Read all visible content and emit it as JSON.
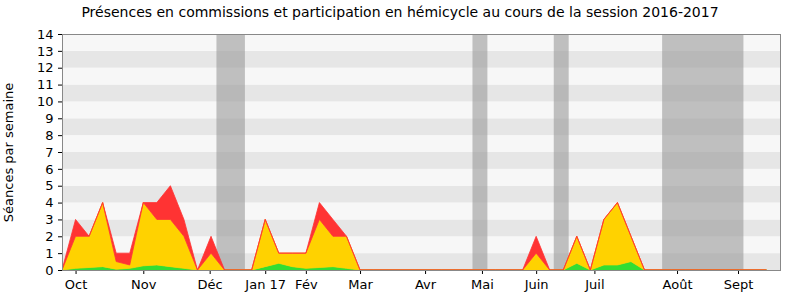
{
  "chart_data": {
    "type": "area",
    "title": "Présences en commissions et participation en hémicycle au cours de la session 2016-2017",
    "y_label": "Séances par semaine",
    "stacked": true,
    "grid": true,
    "x": [
      0,
      1,
      2,
      3,
      4,
      5,
      6,
      7,
      8,
      9,
      10,
      11,
      12,
      13,
      14,
      15,
      16,
      17,
      18,
      19,
      20,
      21,
      22,
      23,
      24,
      25,
      26,
      27,
      28,
      29,
      30,
      31,
      32,
      33,
      34,
      35,
      36,
      37,
      38,
      39,
      40,
      41,
      42,
      43,
      44,
      45,
      46,
      47,
      48,
      49,
      50,
      51,
      52
    ],
    "xlim": [
      0,
      53
    ],
    "xticks": [
      {
        "value": 1,
        "label": "Oct"
      },
      {
        "value": 6,
        "label": "Nov"
      },
      {
        "value": 10.9,
        "label": "Déc"
      },
      {
        "value": 15,
        "label": "Jan 17"
      },
      {
        "value": 18,
        "label": "Fév"
      },
      {
        "value": 22,
        "label": "Mar"
      },
      {
        "value": 26.8,
        "label": "Avr"
      },
      {
        "value": 31,
        "label": "Mai"
      },
      {
        "value": 35,
        "label": "Juin"
      },
      {
        "value": 39.3,
        "label": "Juil"
      },
      {
        "value": 45.4,
        "label": "Août"
      },
      {
        "value": 49.9,
        "label": "Sept"
      }
    ],
    "ylim": [
      0,
      14
    ],
    "yticks": [
      0,
      1,
      2,
      3,
      4,
      5,
      6,
      7,
      8,
      9,
      10,
      11,
      12,
      13,
      14
    ],
    "vacances": [
      [
        11.4,
        13.5
      ],
      [
        30.3,
        31.4
      ],
      [
        36.3,
        37.4
      ],
      [
        44.3,
        50.3
      ]
    ],
    "series": [
      {
        "color": "#33dd33",
        "values": [
          0,
          0.1,
          0.15,
          0.2,
          0.05,
          0.1,
          0.25,
          0.3,
          0.2,
          0.1,
          0,
          0,
          0,
          0,
          0,
          0.2,
          0.4,
          0.2,
          0.1,
          0.15,
          0.2,
          0.1,
          0,
          0,
          0,
          0,
          0,
          0,
          0,
          0,
          0,
          0,
          0,
          0,
          0,
          0,
          0,
          0,
          0.4,
          0,
          0.3,
          0.3,
          0.5,
          0,
          0,
          0,
          0,
          0,
          0,
          0,
          0,
          0,
          0
        ]
      },
      {
        "color": "#ffd200",
        "values": [
          0,
          1.9,
          1.85,
          3.8,
          0.45,
          0.2,
          3.75,
          2.7,
          2.8,
          1.9,
          0,
          1,
          0,
          0,
          0,
          2.8,
          0.6,
          0.8,
          0.9,
          2.85,
          1.8,
          1.9,
          0,
          0,
          0,
          0,
          0,
          0,
          0,
          0,
          0,
          0,
          0,
          0,
          0,
          1,
          0,
          0,
          1.6,
          0,
          2.7,
          3.7,
          1.5,
          0,
          0,
          0,
          0,
          0,
          0,
          0,
          0,
          0,
          0
        ]
      },
      {
        "color": "#ff3333",
        "values": [
          0,
          1,
          0,
          0,
          0.5,
          0.7,
          0,
          1,
          2,
          1,
          0,
          1,
          0,
          0,
          0,
          0,
          0,
          0,
          0,
          1,
          1,
          0,
          0,
          0,
          0,
          0,
          0,
          0,
          0,
          0,
          0,
          0,
          0,
          0,
          0,
          1,
          0,
          0,
          0,
          0,
          0,
          0,
          0,
          0,
          0,
          0,
          0,
          0,
          0,
          0,
          0,
          0,
          0
        ]
      }
    ]
  }
}
